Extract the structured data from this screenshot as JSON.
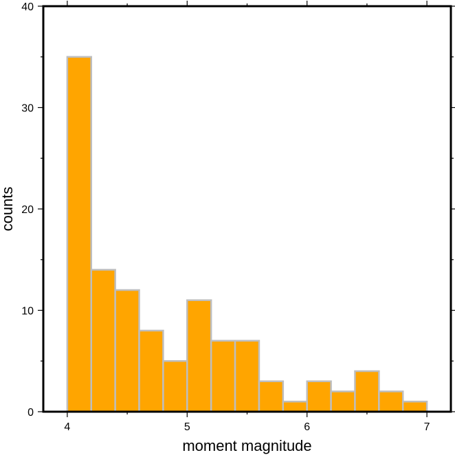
{
  "chart_data": {
    "type": "bar",
    "title": "",
    "xlabel": "moment magnitude",
    "ylabel": "counts",
    "xlim": [
      3.8,
      7.2
    ],
    "ylim": [
      0,
      40
    ],
    "bin_width": 0.2,
    "x_ticks": [
      4,
      5,
      6,
      7
    ],
    "x_tick_labels": [
      "4",
      "5",
      "6",
      "7"
    ],
    "y_ticks": [
      0,
      10,
      20,
      30,
      40
    ],
    "y_tick_labels": [
      "0",
      "10",
      "20",
      "30",
      "40"
    ],
    "bins": [
      {
        "x0": 4.0,
        "x1": 4.2,
        "count": 35
      },
      {
        "x0": 4.2,
        "x1": 4.4,
        "count": 14
      },
      {
        "x0": 4.4,
        "x1": 4.6,
        "count": 12
      },
      {
        "x0": 4.6,
        "x1": 4.8,
        "count": 8
      },
      {
        "x0": 4.8,
        "x1": 5.0,
        "count": 5
      },
      {
        "x0": 5.0,
        "x1": 5.2,
        "count": 11
      },
      {
        "x0": 5.2,
        "x1": 5.4,
        "count": 7
      },
      {
        "x0": 5.4,
        "x1": 5.6,
        "count": 7
      },
      {
        "x0": 5.6,
        "x1": 5.8,
        "count": 3
      },
      {
        "x0": 5.8,
        "x1": 6.0,
        "count": 1
      },
      {
        "x0": 6.0,
        "x1": 6.2,
        "count": 3
      },
      {
        "x0": 6.2,
        "x1": 6.4,
        "count": 2
      },
      {
        "x0": 6.4,
        "x1": 6.6,
        "count": 4
      },
      {
        "x0": 6.6,
        "x1": 6.8,
        "count": 2
      },
      {
        "x0": 6.8,
        "x1": 7.0,
        "count": 1
      }
    ],
    "grid": false,
    "colors": {
      "bar_fill": "#ffa500",
      "bar_edge": "#bebebe",
      "frame": "#000000"
    }
  }
}
